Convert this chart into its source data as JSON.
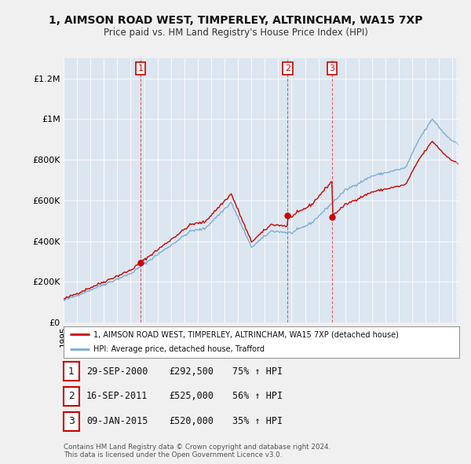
{
  "title": "1, AIMSON ROAD WEST, TIMPERLEY, ALTRINCHAM, WA15 7XP",
  "subtitle": "Price paid vs. HM Land Registry's House Price Index (HPI)",
  "ylim": [
    0,
    1300000
  ],
  "yticks": [
    0,
    200000,
    400000,
    600000,
    800000,
    1000000,
    1200000
  ],
  "ytick_labels": [
    "£0",
    "£200K",
    "£400K",
    "£600K",
    "£800K",
    "£1M",
    "£1.2M"
  ],
  "background_color": "#f0f0f0",
  "plot_bg_color": "#dce6f0",
  "red_color": "#cc0000",
  "blue_color": "#7aadd4",
  "grid_color": "#ffffff",
  "legend_label_red": "1, AIMSON ROAD WEST, TIMPERLEY, ALTRINCHAM, WA15 7XP (detached house)",
  "legend_label_blue": "HPI: Average price, detached house, Trafford",
  "purchases": [
    {
      "label": "1",
      "date_x": 2000.748,
      "price": 292500
    },
    {
      "label": "2",
      "date_x": 2011.71,
      "price": 525000
    },
    {
      "label": "3",
      "date_x": 2015.019,
      "price": 520000
    }
  ],
  "purchase_table": [
    {
      "num": "1",
      "date": "29-SEP-2000",
      "price": "£292,500",
      "pct": "75% ↑ HPI"
    },
    {
      "num": "2",
      "date": "16-SEP-2011",
      "price": "£525,000",
      "pct": "56% ↑ HPI"
    },
    {
      "num": "3",
      "date": "09-JAN-2015",
      "price": "£520,000",
      "pct": "35% ↑ HPI"
    }
  ],
  "footer": "Contains HM Land Registry data © Crown copyright and database right 2024.\nThis data is licensed under the Open Government Licence v3.0.",
  "xlim": [
    1995.0,
    2024.5
  ]
}
